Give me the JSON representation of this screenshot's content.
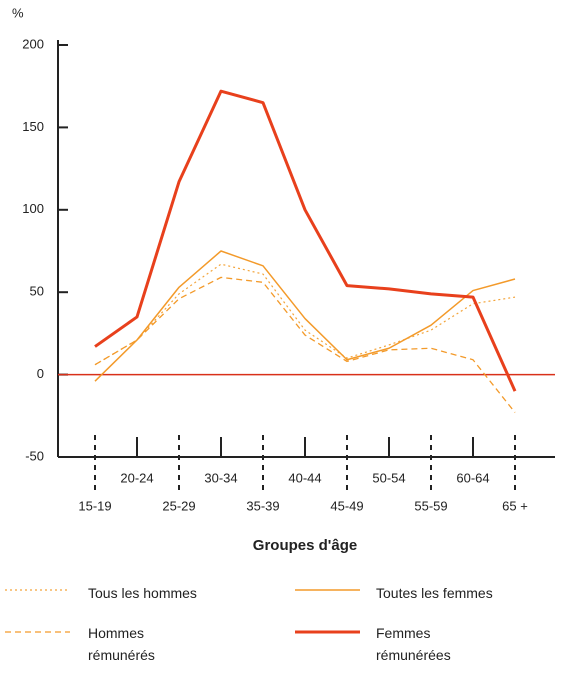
{
  "chart_data": {
    "type": "line",
    "y_label": "%",
    "x_label": "Groupes d'âge",
    "categories": [
      "15-19",
      "20-24",
      "25-29",
      "30-34",
      "35-39",
      "40-44",
      "45-49",
      "50-54",
      "55-59",
      "60-64",
      "65 +"
    ],
    "ylim": [
      -50,
      200
    ],
    "yticks": [
      -50,
      0,
      50,
      100,
      150,
      200
    ],
    "series": [
      {
        "name": "Tous les hommes",
        "color": "#f3a43a",
        "style": "dotted",
        "values": [
          6,
          21,
          49,
          67,
          61,
          27,
          10,
          18,
          27,
          43,
          47
        ]
      },
      {
        "name": "Toutes les femmes",
        "color": "#f39a2a",
        "style": "solid",
        "values": [
          -4,
          21,
          53,
          75,
          66,
          34,
          9,
          16,
          30,
          51,
          58
        ]
      },
      {
        "name": "Hommes rémunérés",
        "color": "#f39a2a",
        "style": "dashed",
        "values": [
          6,
          21,
          46,
          59,
          56,
          24,
          8,
          15,
          16,
          9,
          -23
        ]
      },
      {
        "name": "Femmes rémunérées",
        "color": "#e8401c",
        "style": "thick",
        "values": [
          17,
          35,
          117,
          172,
          165,
          100,
          54,
          52,
          49,
          47,
          -10
        ]
      }
    ]
  }
}
